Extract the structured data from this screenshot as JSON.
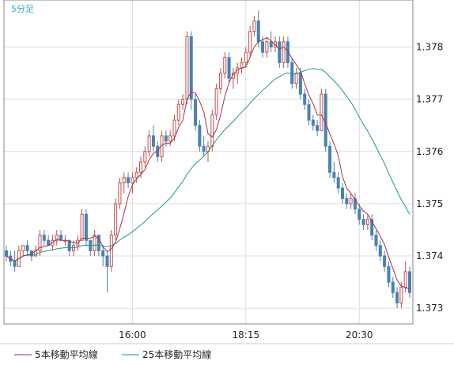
{
  "chart_data": {
    "type": "candlestick",
    "timeframe_label": "5分足",
    "x_ticks": [
      "16:00",
      "18:15",
      "20:30"
    ],
    "y_ticks": [
      1.373,
      1.374,
      1.375,
      1.376,
      1.377,
      1.378
    ],
    "ylim": [
      1.3727,
      1.3789
    ],
    "grid": true,
    "legend_placement": "bottom",
    "colors": {
      "up": "#c0504d",
      "down": "#4a81b4",
      "ma5": "#a0344a",
      "ma25": "#1e9a78",
      "grid": "#dedede",
      "frame": "#888888"
    },
    "series": [
      {
        "name": "5本移動平均線",
        "color": "#a0344a"
      },
      {
        "name": "25本移動平均線",
        "color": "#1e9a78"
      }
    ],
    "candles": [
      [
        1.3741,
        1.3742,
        1.3739,
        1.374
      ],
      [
        1.374,
        1.3741,
        1.3738,
        1.3739
      ],
      [
        1.3739,
        1.3741,
        1.3737,
        1.3738
      ],
      [
        1.3738,
        1.3742,
        1.3738,
        1.3741
      ],
      [
        1.3741,
        1.3742,
        1.374,
        1.3742
      ],
      [
        1.3742,
        1.3743,
        1.374,
        1.3741
      ],
      [
        1.3741,
        1.3741,
        1.3739,
        1.374
      ],
      [
        1.374,
        1.3742,
        1.374,
        1.3741
      ],
      [
        1.3741,
        1.3745,
        1.374,
        1.3744
      ],
      [
        1.3744,
        1.3745,
        1.3742,
        1.3743
      ],
      [
        1.3743,
        1.3744,
        1.3742,
        1.3742
      ],
      [
        1.3742,
        1.3744,
        1.3741,
        1.3743
      ],
      [
        1.3743,
        1.3745,
        1.3742,
        1.3744
      ],
      [
        1.3744,
        1.3745,
        1.3743,
        1.3743
      ],
      [
        1.3743,
        1.3744,
        1.3742,
        1.3743
      ],
      [
        1.3743,
        1.3743,
        1.374,
        1.3741
      ],
      [
        1.3741,
        1.3743,
        1.374,
        1.3742
      ],
      [
        1.3742,
        1.3744,
        1.3741,
        1.3743
      ],
      [
        1.3743,
        1.3749,
        1.3743,
        1.3748
      ],
      [
        1.3748,
        1.3749,
        1.3742,
        1.3743
      ],
      [
        1.3743,
        1.3743,
        1.374,
        1.3741
      ],
      [
        1.3741,
        1.3745,
        1.374,
        1.3744
      ],
      [
        1.3744,
        1.3744,
        1.374,
        1.3741
      ],
      [
        1.3741,
        1.3742,
        1.3738,
        1.374
      ],
      [
        1.374,
        1.3741,
        1.3733,
        1.3738
      ],
      [
        1.3738,
        1.3745,
        1.3737,
        1.3744
      ],
      [
        1.3744,
        1.3751,
        1.3743,
        1.375
      ],
      [
        1.375,
        1.3755,
        1.3749,
        1.3754
      ],
      [
        1.3754,
        1.3756,
        1.3752,
        1.3755
      ],
      [
        1.3755,
        1.3756,
        1.3753,
        1.3754
      ],
      [
        1.3754,
        1.3756,
        1.3752,
        1.3755
      ],
      [
        1.3755,
        1.3757,
        1.3754,
        1.3756
      ],
      [
        1.3756,
        1.3759,
        1.3755,
        1.3758
      ],
      [
        1.3758,
        1.3761,
        1.3757,
        1.376
      ],
      [
        1.376,
        1.3764,
        1.3759,
        1.3763
      ],
      [
        1.3763,
        1.3765,
        1.376,
        1.3761
      ],
      [
        1.3761,
        1.3762,
        1.3758,
        1.3759
      ],
      [
        1.3759,
        1.3764,
        1.3758,
        1.3763
      ],
      [
        1.3763,
        1.3764,
        1.3761,
        1.3762
      ],
      [
        1.3762,
        1.3764,
        1.3761,
        1.3763
      ],
      [
        1.3763,
        1.3767,
        1.3762,
        1.3766
      ],
      [
        1.3766,
        1.377,
        1.3765,
        1.3769
      ],
      [
        1.3769,
        1.3771,
        1.3768,
        1.377
      ],
      [
        1.377,
        1.3783,
        1.3769,
        1.3782
      ],
      [
        1.3782,
        1.3783,
        1.3768,
        1.377
      ],
      [
        1.377,
        1.3771,
        1.3764,
        1.3765
      ],
      [
        1.3765,
        1.3766,
        1.376,
        1.3761
      ],
      [
        1.3761,
        1.3763,
        1.3759,
        1.376
      ],
      [
        1.376,
        1.3762,
        1.3758,
        1.3761
      ],
      [
        1.3761,
        1.3768,
        1.376,
        1.3767
      ],
      [
        1.3767,
        1.3773,
        1.3766,
        1.3772
      ],
      [
        1.3772,
        1.3776,
        1.3771,
        1.3775
      ],
      [
        1.3775,
        1.3779,
        1.3774,
        1.3778
      ],
      [
        1.3778,
        1.3779,
        1.3773,
        1.3774
      ],
      [
        1.3774,
        1.3776,
        1.3772,
        1.3775
      ],
      [
        1.3775,
        1.3777,
        1.3773,
        1.3776
      ],
      [
        1.3776,
        1.3778,
        1.3775,
        1.3777
      ],
      [
        1.3777,
        1.378,
        1.3776,
        1.3779
      ],
      [
        1.3779,
        1.3784,
        1.3778,
        1.3783
      ],
      [
        1.3783,
        1.3786,
        1.3782,
        1.3785
      ],
      [
        1.3785,
        1.3787,
        1.378,
        1.3781
      ],
      [
        1.3781,
        1.3782,
        1.3778,
        1.3779
      ],
      [
        1.3779,
        1.3782,
        1.3778,
        1.3781
      ],
      [
        1.3781,
        1.3783,
        1.3779,
        1.378
      ],
      [
        1.378,
        1.3782,
        1.3779,
        1.3781
      ],
      [
        1.3781,
        1.3782,
        1.3776,
        1.3777
      ],
      [
        1.3777,
        1.3782,
        1.3776,
        1.3781
      ],
      [
        1.3781,
        1.3782,
        1.3776,
        1.3777
      ],
      [
        1.3777,
        1.3778,
        1.3772,
        1.3773
      ],
      [
        1.3773,
        1.3776,
        1.3772,
        1.3775
      ],
      [
        1.3775,
        1.3776,
        1.377,
        1.3771
      ],
      [
        1.3771,
        1.3772,
        1.3768,
        1.3769
      ],
      [
        1.3769,
        1.377,
        1.3765,
        1.3766
      ],
      [
        1.3766,
        1.3767,
        1.3764,
        1.3765
      ],
      [
        1.3765,
        1.3766,
        1.3763,
        1.3764
      ],
      [
        1.3764,
        1.3772,
        1.3764,
        1.3771
      ],
      [
        1.3771,
        1.3772,
        1.376,
        1.3761
      ],
      [
        1.3761,
        1.3762,
        1.3755,
        1.3756
      ],
      [
        1.3756,
        1.3758,
        1.3754,
        1.3755
      ],
      [
        1.3755,
        1.3756,
        1.3752,
        1.3753
      ],
      [
        1.3753,
        1.3754,
        1.375,
        1.3751
      ],
      [
        1.3751,
        1.3752,
        1.3749,
        1.375
      ],
      [
        1.375,
        1.3752,
        1.3749,
        1.3751
      ],
      [
        1.3751,
        1.3752,
        1.3748,
        1.3749
      ],
      [
        1.3749,
        1.375,
        1.3746,
        1.3747
      ],
      [
        1.3747,
        1.3748,
        1.3745,
        1.3746
      ],
      [
        1.3746,
        1.3748,
        1.3745,
        1.3747
      ],
      [
        1.3747,
        1.3748,
        1.3743,
        1.3744
      ],
      [
        1.3744,
        1.3745,
        1.3741,
        1.3742
      ],
      [
        1.3742,
        1.3743,
        1.3739,
        1.374
      ],
      [
        1.374,
        1.3741,
        1.3737,
        1.3738
      ],
      [
        1.3738,
        1.3739,
        1.3734,
        1.3735
      ],
      [
        1.3735,
        1.3736,
        1.3732,
        1.3733
      ],
      [
        1.3733,
        1.3734,
        1.373,
        1.3731
      ],
      [
        1.3731,
        1.3735,
        1.373,
        1.3734
      ],
      [
        1.3734,
        1.3739,
        1.3733,
        1.3737
      ],
      [
        1.3737,
        1.3738,
        1.3732,
        1.3733
      ]
    ]
  }
}
